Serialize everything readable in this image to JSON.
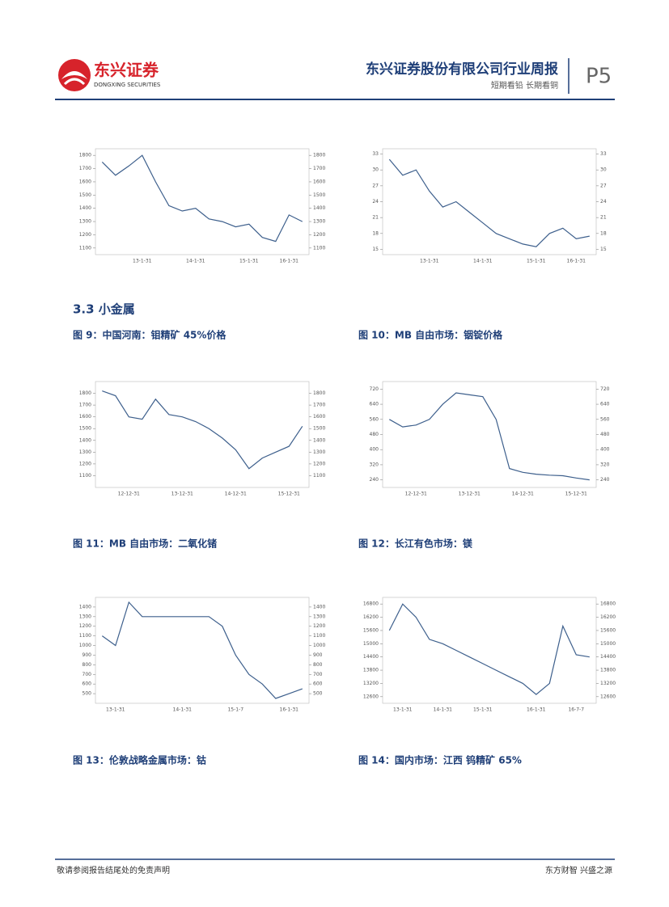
{
  "header": {
    "logo_cn": "东兴证券",
    "logo_en": "DONGXING SECURITIES",
    "title": "东兴证券股份有限公司行业周报",
    "subtitle": "短期看铅 长期看铜",
    "page": "P5"
  },
  "section_title": "3.3 小金属",
  "captions": [
    "图 9：中国河南：钼精矿 45%价格",
    "图 10：MB 自由市场：铟锭价格",
    "图 11：MB 自由市场：二氧化锗",
    "图 12：长江有色市场：镁",
    "图 13：伦敦战略金属市场：钴",
    "图 14：国内市场：江西 钨精矿 65%"
  ],
  "footer": {
    "left": "敬请参阅报告结尾处的免责声明",
    "right": "东方财智 兴盛之源"
  },
  "chart_data": [
    {
      "type": "line",
      "color": "#3d5f8c",
      "ylim": [
        1050,
        1850
      ],
      "yticks": [
        1100,
        1200,
        1300,
        1400,
        1500,
        1600,
        1700,
        1800
      ],
      "categories": [
        null,
        null,
        null,
        "13-1-31",
        null,
        null,
        null,
        "14-1-31",
        null,
        null,
        null,
        "15-1-31",
        null,
        null,
        "16-1-31",
        null
      ],
      "values": [
        1750,
        1650,
        1720,
        1800,
        1600,
        1420,
        1380,
        1400,
        1320,
        1300,
        1260,
        1280,
        1180,
        1150,
        1350,
        1300
      ]
    },
    {
      "type": "line",
      "color": "#3d5f8c",
      "ylim": [
        14,
        34
      ],
      "yticks": [
        15,
        18,
        21,
        24,
        27,
        30,
        33
      ],
      "categories": [
        null,
        null,
        null,
        "13-1-31",
        null,
        null,
        null,
        "14-1-31",
        null,
        null,
        null,
        "15-1-31",
        null,
        null,
        "16-1-31",
        null
      ],
      "values": [
        32,
        29,
        30,
        26,
        23,
        24,
        22,
        20,
        18,
        17,
        16,
        15.5,
        18,
        19,
        17,
        17.5
      ]
    },
    {
      "type": "line",
      "color": "#3d5f8c",
      "ylim": [
        1000,
        1900
      ],
      "yticks": [
        1100,
        1200,
        1300,
        1400,
        1500,
        1600,
        1700,
        1800
      ],
      "categories": [
        null,
        null,
        "12-12-31",
        null,
        null,
        null,
        "13-12-31",
        null,
        null,
        null,
        "14-12-31",
        null,
        null,
        null,
        "15-12-31",
        null
      ],
      "values": [
        1820,
        1780,
        1600,
        1580,
        1750,
        1620,
        1600,
        1560,
        1500,
        1420,
        1320,
        1160,
        1250,
        1300,
        1350,
        1520
      ]
    },
    {
      "type": "line",
      "color": "#3d5f8c",
      "ylim": [
        200,
        760
      ],
      "yticks": [
        240,
        320,
        400,
        480,
        560,
        640,
        720
      ],
      "categories": [
        null,
        null,
        "12-12-31",
        null,
        null,
        null,
        "13-12-31",
        null,
        null,
        null,
        "14-12-31",
        null,
        null,
        null,
        "15-12-31",
        null
      ],
      "values": [
        560,
        520,
        530,
        560,
        640,
        700,
        690,
        680,
        560,
        300,
        280,
        270,
        265,
        262,
        250,
        240
      ]
    },
    {
      "type": "line",
      "color": "#3d5f8c",
      "ylim": [
        400,
        1500
      ],
      "yticks": [
        500,
        600,
        700,
        800,
        900,
        1000,
        1100,
        1200,
        1300,
        1400
      ],
      "categories": [
        null,
        "13-1-31",
        null,
        null,
        null,
        null,
        "14-1-31",
        null,
        null,
        null,
        "15-1-7",
        null,
        null,
        null,
        "16-1-31",
        null
      ],
      "values": [
        1100,
        1000,
        1450,
        1300,
        1300,
        1300,
        1300,
        1300,
        1300,
        1200,
        900,
        700,
        600,
        450,
        500,
        550
      ]
    },
    {
      "type": "line",
      "color": "#3d5f8c",
      "ylim": [
        12300,
        17100
      ],
      "yticks": [
        12600,
        13200,
        13800,
        14400,
        15000,
        15600,
        16200,
        16800
      ],
      "categories": [
        null,
        "13-1-31",
        null,
        null,
        "14-1-31",
        null,
        null,
        "15-1-31",
        null,
        null,
        null,
        "16-1-31",
        null,
        null,
        "16-7-7",
        null
      ],
      "values": [
        15600,
        16800,
        16200,
        15200,
        15000,
        14700,
        14400,
        14100,
        13800,
        13500,
        13200,
        12700,
        13200,
        15800,
        14500,
        14400
      ]
    }
  ]
}
